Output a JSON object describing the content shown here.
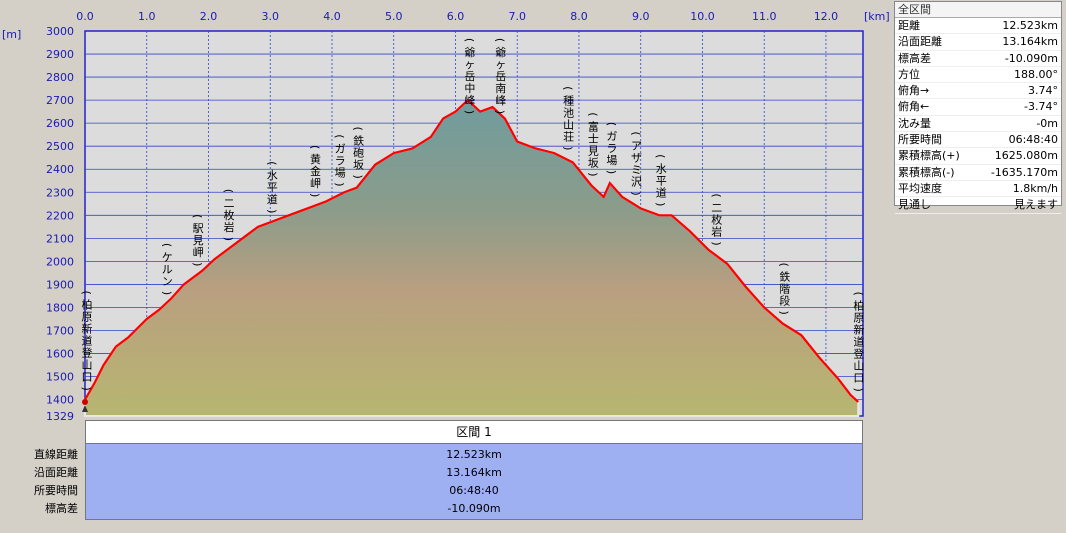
{
  "chart_data": {
    "type": "area",
    "x_unit": "[km]",
    "y_unit": "[m]",
    "xlim": [
      0,
      12.6
    ],
    "ylim": [
      1329,
      3000
    ],
    "x_ticks": [
      "0.0",
      "1.0",
      "2.0",
      "3.0",
      "4.0",
      "5.0",
      "6.0",
      "7.0",
      "8.0",
      "9.0",
      "10.0",
      "11.0",
      "12.0"
    ],
    "y_ticks": [
      "3000",
      "2900",
      "2800",
      "2700",
      "2600",
      "2500",
      "2400",
      "2300",
      "2200",
      "2100",
      "2000",
      "1900",
      "1800",
      "1700",
      "1600",
      "1500",
      "1400",
      "1329"
    ],
    "grid": true,
    "x": [
      0.0,
      0.15,
      0.3,
      0.5,
      0.7,
      1.0,
      1.2,
      1.4,
      1.6,
      1.9,
      2.1,
      2.3,
      2.6,
      2.8,
      3.0,
      3.3,
      3.6,
      3.9,
      4.2,
      4.4,
      4.7,
      5.0,
      5.3,
      5.6,
      5.8,
      6.0,
      6.2,
      6.4,
      6.6,
      6.8,
      7.0,
      7.3,
      7.6,
      7.9,
      8.2,
      8.4,
      8.5,
      8.7,
      9.0,
      9.3,
      9.5,
      9.8,
      10.1,
      10.4,
      10.7,
      11.0,
      11.3,
      11.6,
      11.9,
      12.2,
      12.4,
      12.523
    ],
    "y": [
      1400,
      1470,
      1550,
      1630,
      1670,
      1750,
      1790,
      1840,
      1900,
      1960,
      2010,
      2050,
      2110,
      2150,
      2170,
      2200,
      2230,
      2260,
      2300,
      2320,
      2420,
      2470,
      2490,
      2540,
      2620,
      2650,
      2700,
      2650,
      2670,
      2620,
      2520,
      2490,
      2470,
      2430,
      2330,
      2280,
      2340,
      2280,
      2230,
      2200,
      2200,
      2130,
      2050,
      1990,
      1890,
      1800,
      1730,
      1680,
      1580,
      1490,
      1420,
      1390
    ],
    "waypoints": [
      {
        "name": "柏原新道登山口",
        "x": 0.0
      },
      {
        "name": "ケルン",
        "x": 1.3
      },
      {
        "name": "駅見岬",
        "x": 1.8
      },
      {
        "name": "二枚岩",
        "x": 2.3
      },
      {
        "name": "水平道",
        "x": 3.0
      },
      {
        "name": "黄金岬",
        "x": 3.7
      },
      {
        "name": "ガラ場",
        "x": 4.1
      },
      {
        "name": "鉄砲坂",
        "x": 4.4
      },
      {
        "name": "爺ヶ岳中峰",
        "x": 6.2
      },
      {
        "name": "爺ヶ岳南峰",
        "x": 6.7
      },
      {
        "name": "種池山荘",
        "x": 7.8
      },
      {
        "name": "富士見坂",
        "x": 8.2
      },
      {
        "name": "ガラ場",
        "x": 8.5
      },
      {
        "name": "アザミ沢",
        "x": 8.9
      },
      {
        "name": "水平道",
        "x": 9.3
      },
      {
        "name": "二枚岩",
        "x": 10.2
      },
      {
        "name": "鉄階段",
        "x": 11.3
      },
      {
        "name": "柏原新道登山口",
        "x": 12.5
      }
    ],
    "line_color": "#ff0000"
  },
  "info": {
    "title": "全区間",
    "rows": [
      {
        "label": "距離",
        "value": "12.523km"
      },
      {
        "label": "沿面距離",
        "value": "13.164km"
      },
      {
        "label": "標高差",
        "value": "-10.090m"
      },
      {
        "label": "方位",
        "value": "188.00°"
      },
      {
        "label": "俯角→",
        "value": "3.74°"
      },
      {
        "label": "俯角←",
        "value": "-3.74°"
      },
      {
        "label": "沈み量",
        "value": "-0m"
      },
      {
        "label": "所要時間",
        "value": "06:48:40"
      },
      {
        "label": "累積標高(+)",
        "value": "1625.080m"
      },
      {
        "label": "累積標高(-)",
        "value": "-1635.170m"
      },
      {
        "label": "平均速度",
        "value": "1.8km/h"
      },
      {
        "label": "見通し",
        "value": "見えます"
      }
    ]
  },
  "section": {
    "header": "区間 1",
    "rows": [
      {
        "label": "直線距離",
        "value": "12.523km"
      },
      {
        "label": "沿面距離",
        "value": "13.164km"
      },
      {
        "label": "所要時間",
        "value": "06:48:40"
      },
      {
        "label": "標高差",
        "value": "-10.090m"
      }
    ]
  }
}
